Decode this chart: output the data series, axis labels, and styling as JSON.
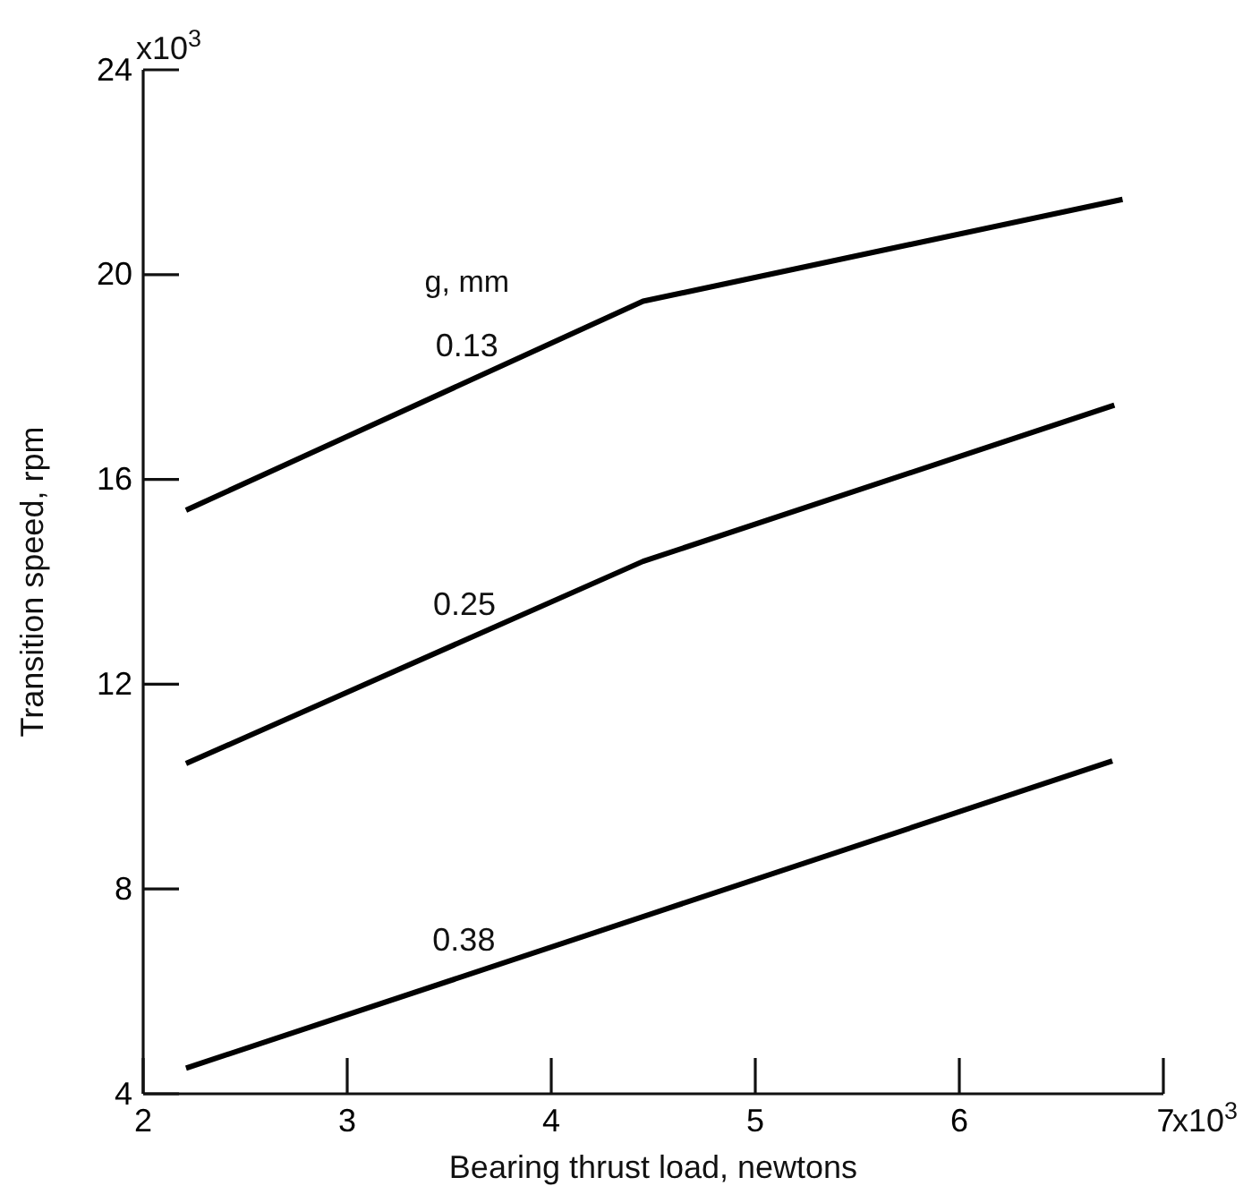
{
  "chart_data": {
    "type": "line",
    "xlabel": "Bearing thrust load, newtons",
    "ylabel": "Transition speed, rpm",
    "legend_title": "g, mm",
    "annotations": [
      "x10$^{3}$",
      "x10$^{3}$"
    ],
    "xlim": [
      2,
      7
    ],
    "xticks": [
      2,
      3,
      4,
      5,
      6,
      7
    ],
    "ylim": [
      4,
      24
    ],
    "yticks": [
      4,
      8,
      12,
      16,
      20,
      24
    ],
    "grid": false,
    "marker": "none",
    "line_style": "solid",
    "series": [
      {
        "name": "0.13",
        "color": "#000000",
        "x": [
          2.21,
          4.45,
          6.8
        ],
        "values": [
          15.4,
          19.48,
          21.47
        ]
      },
      {
        "name": "0.25",
        "color": "#000000",
        "x": [
          2.21,
          4.45,
          6.76
        ],
        "values": [
          10.45,
          14.4,
          17.45
        ]
      },
      {
        "name": "0.38",
        "color": "#000000",
        "x": [
          2.21,
          6.75
        ],
        "values": [
          4.5,
          10.5
        ]
      }
    ]
  }
}
